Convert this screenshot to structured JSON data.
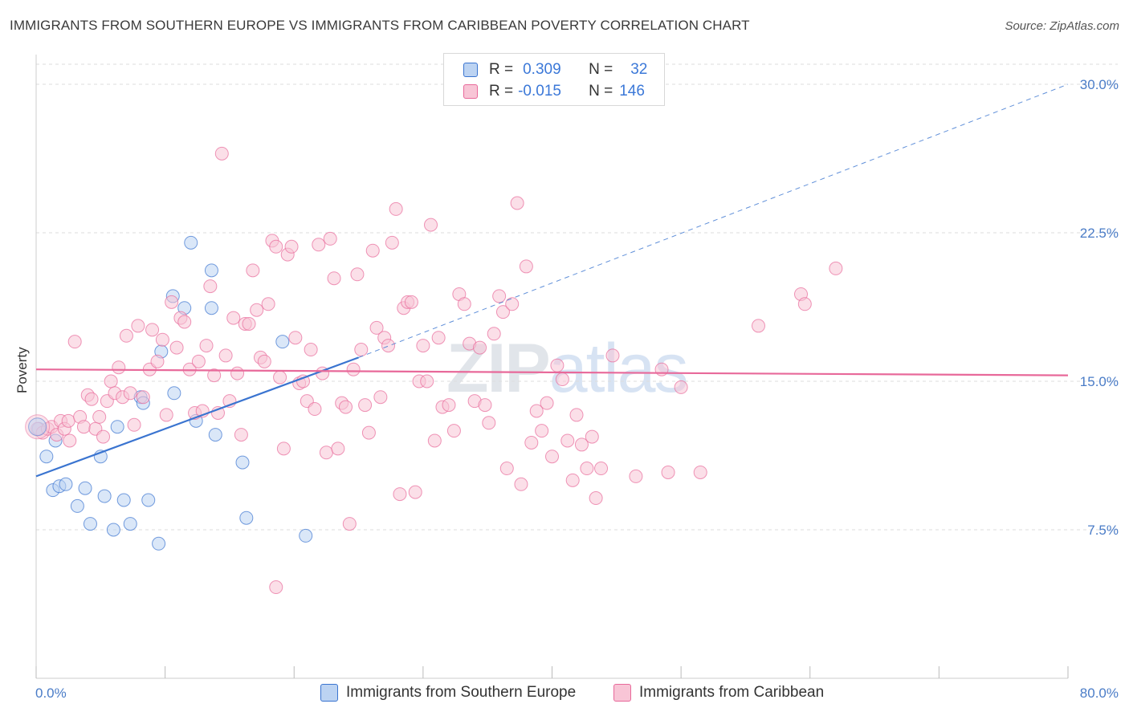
{
  "title": "IMMIGRANTS FROM SOUTHERN EUROPE VS IMMIGRANTS FROM CARIBBEAN POVERTY CORRELATION CHART",
  "source": "Source: ZipAtlas.com",
  "watermark": {
    "zip": "ZIP",
    "atlas": "atlas"
  },
  "colors": {
    "blue": "#3a74d0",
    "blue_fill": "#bcd3f2",
    "pink": "#e8699a",
    "pink_fill": "#f8c5d6",
    "axis_label": "#4a7cc7",
    "grid": "#dddddd"
  },
  "legend": {
    "rows": [
      {
        "r_label": "R =",
        "r_value": "0.309",
        "n_label": "N =",
        "n_value": "32"
      },
      {
        "r_label": "R =",
        "r_value": "-0.015",
        "n_label": "N =",
        "n_value": "146"
      }
    ]
  },
  "bottom_legend": [
    "Immigrants from Southern Europe",
    "Immigrants from Caribbean"
  ],
  "chart_data": {
    "type": "scatter",
    "title": "IMMIGRANTS FROM SOUTHERN EUROPE VS IMMIGRANTS FROM CARIBBEAN POVERTY CORRELATION CHART",
    "xlabel": "",
    "ylabel": "Poverty",
    "xlim": [
      0,
      80
    ],
    "ylim": [
      0,
      31.5
    ],
    "x_tick_labels": [
      "0.0%",
      "80.0%"
    ],
    "y_ticks": [
      7.5,
      15.0,
      22.5,
      30.0
    ],
    "y_tick_labels": [
      "7.5%",
      "15.0%",
      "22.5%",
      "30.0%"
    ],
    "grid": true,
    "series": [
      {
        "name": "Immigrants from Southern Europe",
        "color": "#3a74d0",
        "trend": {
          "x0": 0,
          "y0": 10.2,
          "x1": 25,
          "y1": 16.2,
          "extend_to_x": 80,
          "extend_to_y": 30.0
        },
        "points": [
          [
            0.2,
            12.6
          ],
          [
            0.8,
            11.2
          ],
          [
            1.5,
            12.0
          ],
          [
            1.3,
            9.5
          ],
          [
            1.8,
            9.7
          ],
          [
            2.3,
            9.8
          ],
          [
            3.2,
            8.7
          ],
          [
            3.8,
            9.6
          ],
          [
            4.2,
            7.8
          ],
          [
            5.0,
            11.2
          ],
          [
            5.3,
            9.2
          ],
          [
            6.0,
            7.5
          ],
          [
            6.3,
            12.7
          ],
          [
            6.8,
            9.0
          ],
          [
            7.3,
            7.8
          ],
          [
            8.1,
            14.2
          ],
          [
            8.7,
            9.0
          ],
          [
            9.5,
            6.8
          ],
          [
            9.7,
            16.5
          ],
          [
            10.6,
            19.3
          ],
          [
            10.7,
            14.4
          ],
          [
            11.5,
            18.7
          ],
          [
            12.0,
            22.0
          ],
          [
            12.4,
            13.0
          ],
          [
            13.6,
            18.7
          ],
          [
            13.6,
            20.6
          ],
          [
            13.9,
            12.3
          ],
          [
            16.0,
            10.9
          ],
          [
            16.3,
            8.1
          ],
          [
            19.1,
            17.0
          ],
          [
            20.9,
            7.2
          ],
          [
            8.3,
            13.9
          ]
        ]
      },
      {
        "name": "Immigrants from Caribbean",
        "color": "#e8699a",
        "trend": {
          "x0": 0,
          "y0": 15.6,
          "x1": 80,
          "y1": 15.3
        },
        "points": [
          [
            0.1,
            12.6
          ],
          [
            0.5,
            12.4
          ],
          [
            0.9,
            12.6
          ],
          [
            1.2,
            12.7
          ],
          [
            1.6,
            12.3
          ],
          [
            1.9,
            13.0
          ],
          [
            2.2,
            12.6
          ],
          [
            2.5,
            13.0
          ],
          [
            2.6,
            12.0
          ],
          [
            3.0,
            17.0
          ],
          [
            3.4,
            13.2
          ],
          [
            3.7,
            12.7
          ],
          [
            4.0,
            14.3
          ],
          [
            4.3,
            14.1
          ],
          [
            4.6,
            12.6
          ],
          [
            4.9,
            13.2
          ],
          [
            5.2,
            12.2
          ],
          [
            5.5,
            14.0
          ],
          [
            5.8,
            15.0
          ],
          [
            6.1,
            14.4
          ],
          [
            6.4,
            15.7
          ],
          [
            6.7,
            14.2
          ],
          [
            7.0,
            17.3
          ],
          [
            7.3,
            14.4
          ],
          [
            7.6,
            12.8
          ],
          [
            7.9,
            17.8
          ],
          [
            8.3,
            14.2
          ],
          [
            8.8,
            15.6
          ],
          [
            9.0,
            17.6
          ],
          [
            9.4,
            16.0
          ],
          [
            9.8,
            17.1
          ],
          [
            10.1,
            13.3
          ],
          [
            10.5,
            19.0
          ],
          [
            10.9,
            16.7
          ],
          [
            11.2,
            18.2
          ],
          [
            11.5,
            18.0
          ],
          [
            11.9,
            15.6
          ],
          [
            12.3,
            13.4
          ],
          [
            12.6,
            16.0
          ],
          [
            12.9,
            13.5
          ],
          [
            13.2,
            16.8
          ],
          [
            13.5,
            19.8
          ],
          [
            13.8,
            15.3
          ],
          [
            14.1,
            13.4
          ],
          [
            14.4,
            26.5
          ],
          [
            14.7,
            16.3
          ],
          [
            15.0,
            14.0
          ],
          [
            15.3,
            18.2
          ],
          [
            15.6,
            15.4
          ],
          [
            15.9,
            12.3
          ],
          [
            16.2,
            17.9
          ],
          [
            16.5,
            17.9
          ],
          [
            16.8,
            20.6
          ],
          [
            17.1,
            18.6
          ],
          [
            17.4,
            16.2
          ],
          [
            17.7,
            16.0
          ],
          [
            18.0,
            18.9
          ],
          [
            18.3,
            22.1
          ],
          [
            18.6,
            21.8
          ],
          [
            18.9,
            15.2
          ],
          [
            19.2,
            11.6
          ],
          [
            19.5,
            21.4
          ],
          [
            19.8,
            21.8
          ],
          [
            20.1,
            17.2
          ],
          [
            20.4,
            14.9
          ],
          [
            20.7,
            15.0
          ],
          [
            21.0,
            14.0
          ],
          [
            21.3,
            16.6
          ],
          [
            21.6,
            13.6
          ],
          [
            21.9,
            21.9
          ],
          [
            22.2,
            15.4
          ],
          [
            22.5,
            11.4
          ],
          [
            22.8,
            22.2
          ],
          [
            23.1,
            20.2
          ],
          [
            23.4,
            11.6
          ],
          [
            23.7,
            13.9
          ],
          [
            24.0,
            13.7
          ],
          [
            24.3,
            7.8
          ],
          [
            24.6,
            15.6
          ],
          [
            24.9,
            20.4
          ],
          [
            25.2,
            16.6
          ],
          [
            25.5,
            13.8
          ],
          [
            25.8,
            12.4
          ],
          [
            26.1,
            21.6
          ],
          [
            26.4,
            17.7
          ],
          [
            26.7,
            14.2
          ],
          [
            27.0,
            17.2
          ],
          [
            27.3,
            16.8
          ],
          [
            27.6,
            22.0
          ],
          [
            27.9,
            23.7
          ],
          [
            28.2,
            9.3
          ],
          [
            28.5,
            18.7
          ],
          [
            28.8,
            19.0
          ],
          [
            29.1,
            19.0
          ],
          [
            29.4,
            9.4
          ],
          [
            29.7,
            15.0
          ],
          [
            30.0,
            16.8
          ],
          [
            30.3,
            15.0
          ],
          [
            30.6,
            22.9
          ],
          [
            30.9,
            12.0
          ],
          [
            31.2,
            17.2
          ],
          [
            31.5,
            13.7
          ],
          [
            32.0,
            13.8
          ],
          [
            32.4,
            12.5
          ],
          [
            32.8,
            19.4
          ],
          [
            33.2,
            18.9
          ],
          [
            33.6,
            16.9
          ],
          [
            34.0,
            14.0
          ],
          [
            34.4,
            16.7
          ],
          [
            34.8,
            13.8
          ],
          [
            35.1,
            12.9
          ],
          [
            35.5,
            17.4
          ],
          [
            35.9,
            19.3
          ],
          [
            36.2,
            18.5
          ],
          [
            36.5,
            10.6
          ],
          [
            36.9,
            18.9
          ],
          [
            37.3,
            24.0
          ],
          [
            37.6,
            9.8
          ],
          [
            38.0,
            20.8
          ],
          [
            38.4,
            11.9
          ],
          [
            38.8,
            13.5
          ],
          [
            39.2,
            12.5
          ],
          [
            39.6,
            13.9
          ],
          [
            40.0,
            11.2
          ],
          [
            40.4,
            15.8
          ],
          [
            40.8,
            15.1
          ],
          [
            41.2,
            12.0
          ],
          [
            41.6,
            10.0
          ],
          [
            41.9,
            13.3
          ],
          [
            42.3,
            11.8
          ],
          [
            42.7,
            10.6
          ],
          [
            43.1,
            12.2
          ],
          [
            43.4,
            9.1
          ],
          [
            43.8,
            10.6
          ],
          [
            44.7,
            16.3
          ],
          [
            46.5,
            10.2
          ],
          [
            48.5,
            15.6
          ],
          [
            49.0,
            10.4
          ],
          [
            50.0,
            14.7
          ],
          [
            51.5,
            10.4
          ],
          [
            56.0,
            17.8
          ],
          [
            59.3,
            19.4
          ],
          [
            59.6,
            18.9
          ],
          [
            62.0,
            20.7
          ],
          [
            18.6,
            4.6
          ]
        ]
      }
    ]
  }
}
